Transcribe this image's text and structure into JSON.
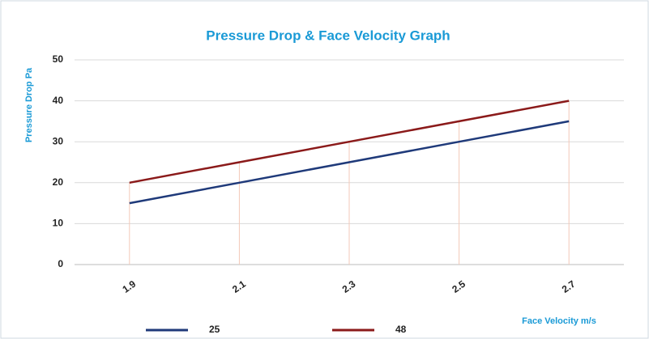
{
  "chart_data": {
    "type": "line",
    "title": "Pressure Drop  &  Face Velocity  Graph",
    "y_label": "Pressure Drop  Pa",
    "x_label": "Face Velocity  m/s",
    "categories": [
      "1.9",
      "2.1",
      "2.3",
      "2.5",
      "2.7"
    ],
    "series": [
      {
        "name": "25",
        "color": "#1f3a7a",
        "values": [
          15,
          20,
          25,
          30,
          35
        ]
      },
      {
        "name": "48",
        "color": "#8b1a1a",
        "values": [
          20,
          25,
          30,
          35,
          40
        ]
      }
    ],
    "ylim": [
      0,
      50
    ],
    "yticks": [
      0,
      10,
      20,
      30,
      40,
      50
    ],
    "grid": true,
    "legend": "bottom"
  }
}
